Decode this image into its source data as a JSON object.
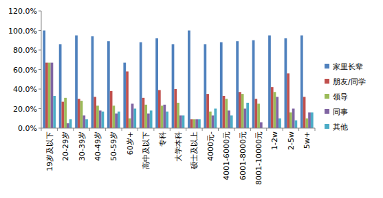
{
  "chart_data": {
    "type": "bar",
    "categories": [
      "19岁及以下",
      "20-29岁",
      "30-39岁",
      "40-49岁",
      "50-59岁",
      "60岁+",
      "高中及以下",
      "专科",
      "大学本科",
      "硕士及以上",
      "4000元-",
      "4001-6000元",
      "6001-8000元",
      "8001-10000元",
      "1-2w",
      "2-5w",
      "5w+"
    ],
    "series": [
      {
        "name": "家里长辈",
        "color": "#4f81bd",
        "values": [
          100,
          86,
          95,
          94,
          89,
          67,
          88,
          92,
          86,
          100,
          86,
          88,
          89,
          90,
          95,
          92,
          95
        ]
      },
      {
        "name": "朋友/同学",
        "color": "#c0504d",
        "values": [
          67,
          27,
          30,
          32,
          38,
          58,
          31,
          39,
          40,
          9,
          35,
          33,
          37,
          30,
          42,
          56,
          32
        ]
      },
      {
        "name": "领导",
        "color": "#9bbb59",
        "values": [
          67,
          31,
          28,
          23,
          23,
          10,
          24,
          23,
          26,
          9,
          17,
          30,
          35,
          25,
          37,
          16,
          10
        ]
      },
      {
        "name": "同事",
        "color": "#8064a2",
        "values": [
          67,
          5,
          13,
          18,
          15,
          25,
          15,
          24,
          13,
          9,
          13,
          18,
          20,
          6,
          32,
          20,
          16
        ]
      },
      {
        "name": "其他",
        "color": "#4bacc6",
        "values": [
          33,
          9,
          9,
          17,
          17,
          20,
          18,
          17,
          13,
          9,
          20,
          13,
          26,
          0,
          10,
          8,
          16
        ]
      }
    ],
    "ylim": [
      0,
      120
    ],
    "yticks": [
      {
        "value": 0,
        "label": "0.0%"
      },
      {
        "value": 20,
        "label": "20.0%"
      },
      {
        "value": 40,
        "label": "40.0%"
      },
      {
        "value": 60,
        "label": "60.0%"
      },
      {
        "value": 80,
        "label": "80.0%"
      },
      {
        "value": 100,
        "label": "100.0%"
      },
      {
        "value": 120,
        "label": "120.0%"
      }
    ],
    "grid": false,
    "legend": "right"
  }
}
